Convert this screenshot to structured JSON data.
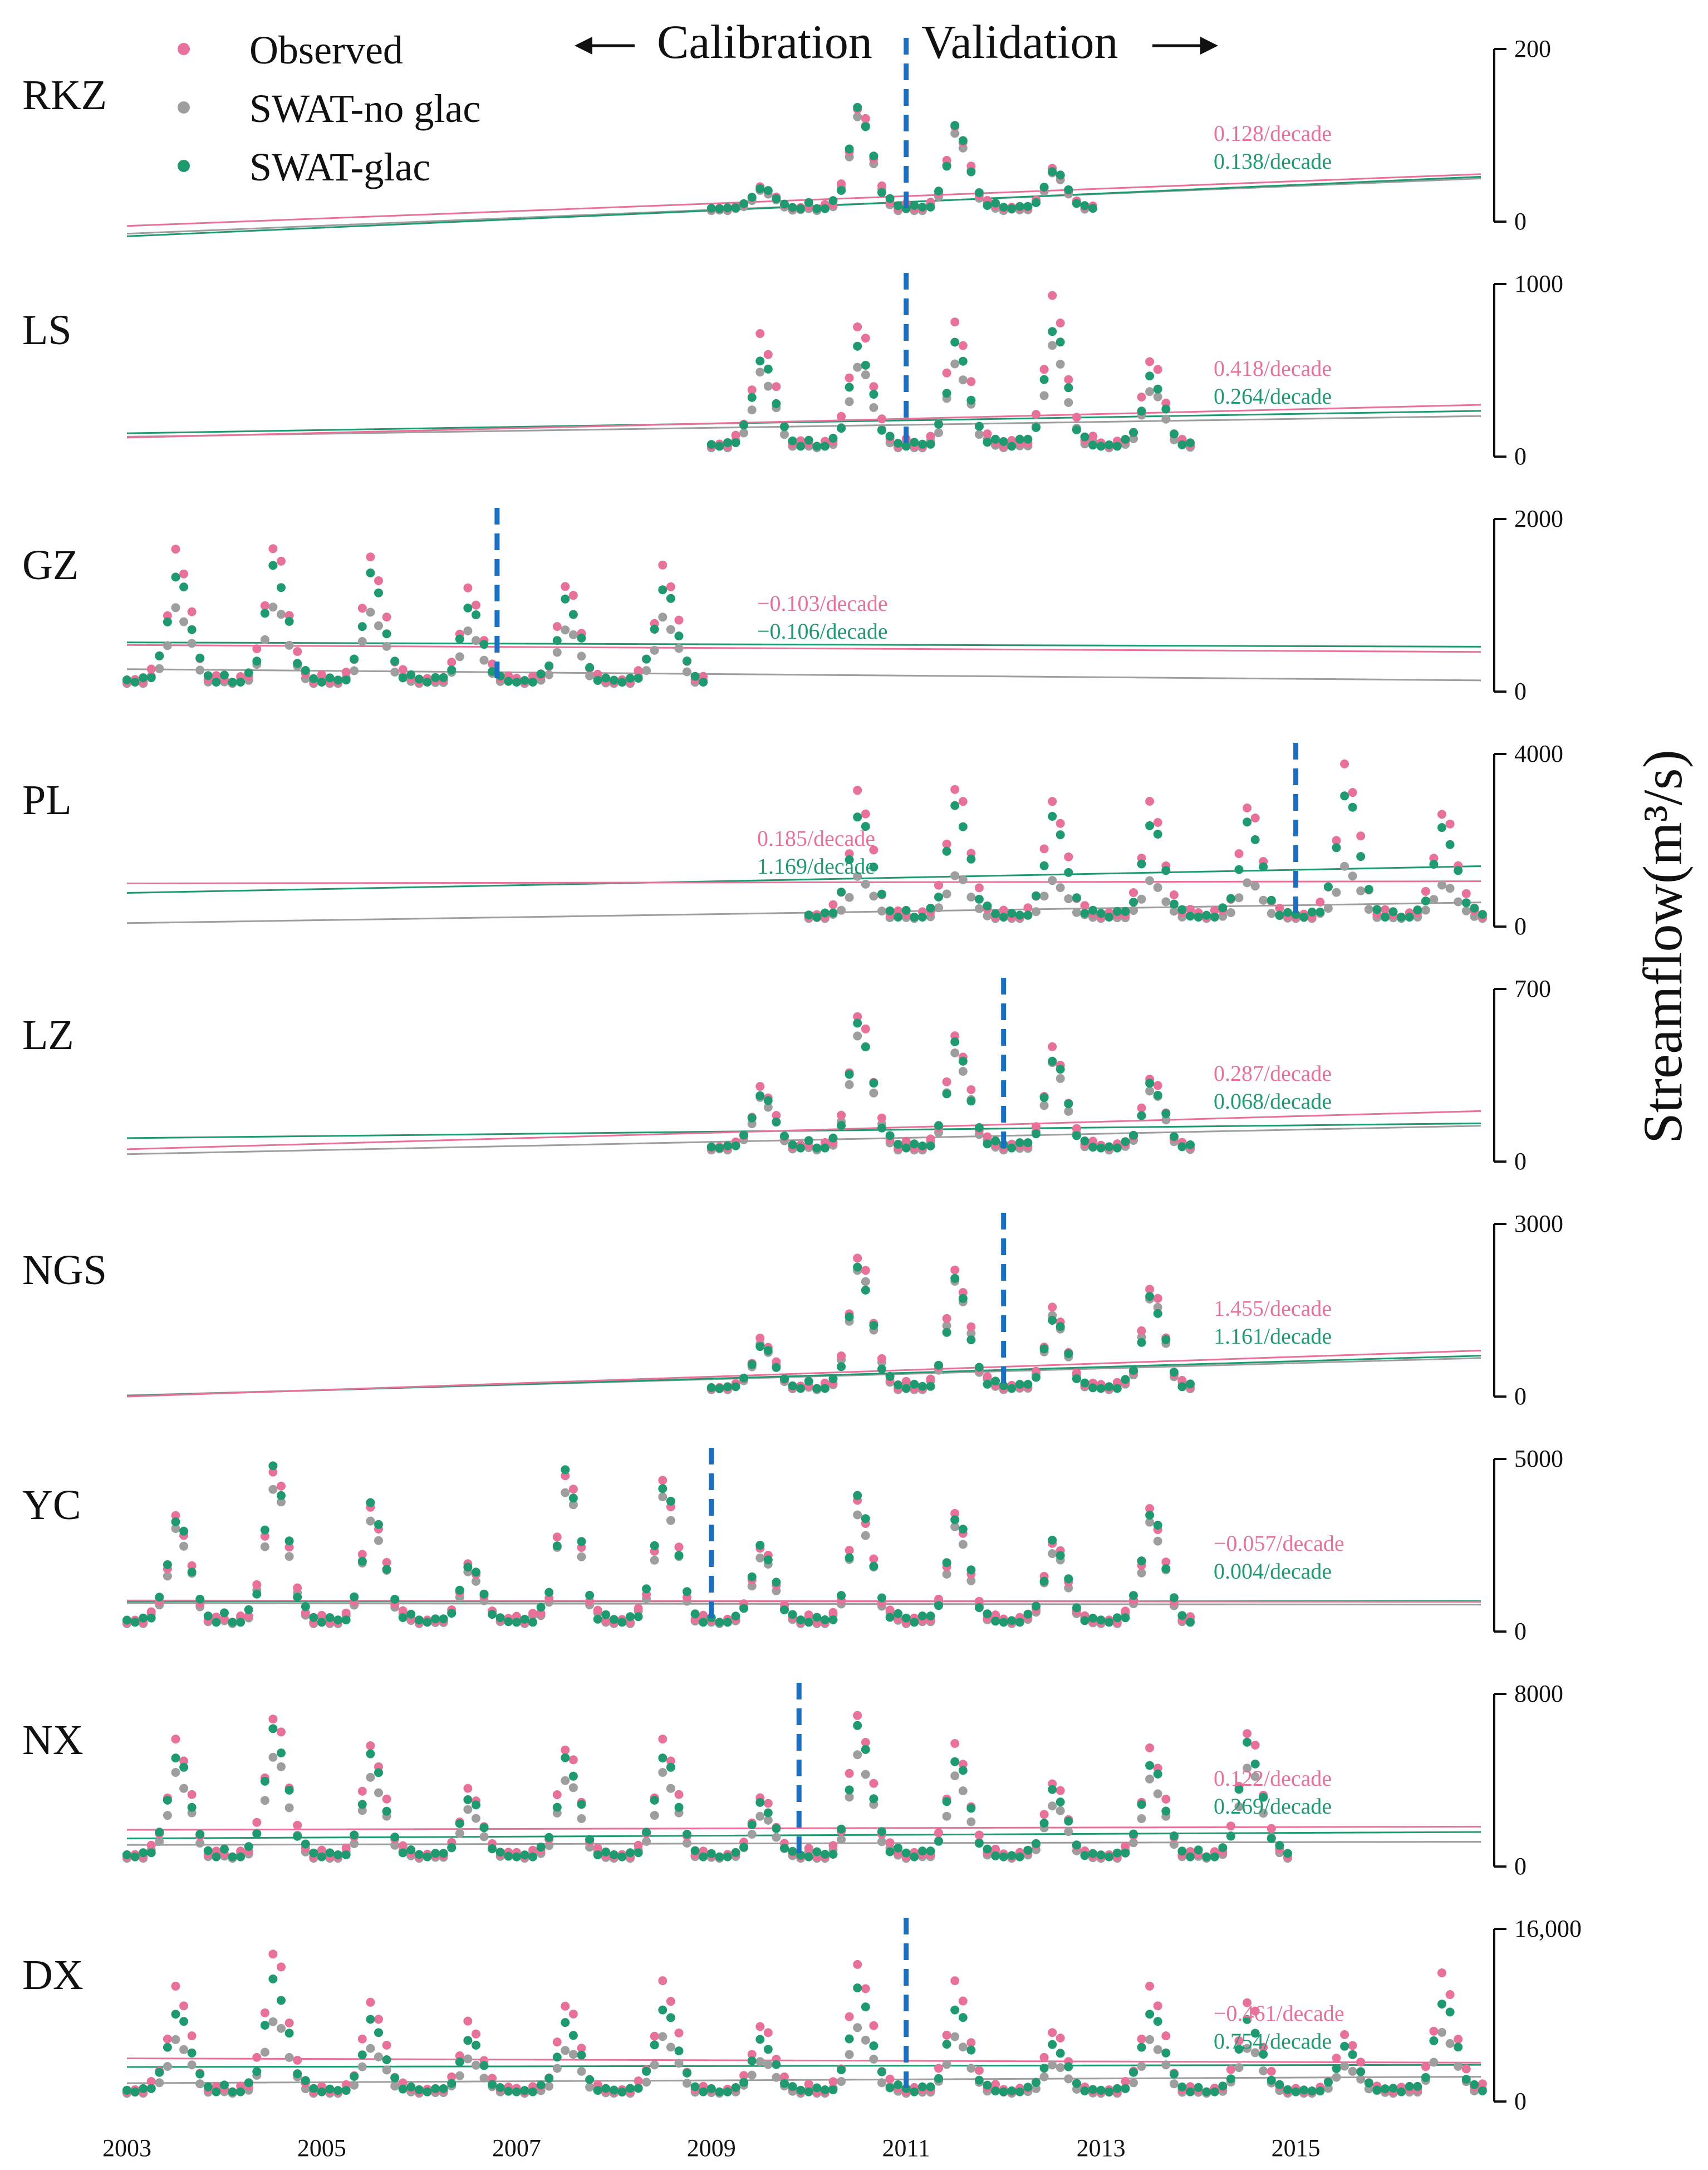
{
  "header": {
    "calibration": "Calibration",
    "validation": "Validation"
  },
  "legend": [
    {
      "label": "Observed",
      "color": "#e8719c"
    },
    {
      "label": "SWAT-no glac",
      "color": "#9e9e9e"
    },
    {
      "label": "SWAT-glac",
      "color": "#1f9a6f"
    }
  ],
  "colors": {
    "observed": "#e8719c",
    "noglac": "#9e9e9e",
    "glac": "#1f9a6f",
    "split": "#1a6fc0",
    "axis": "#111111"
  },
  "chart_data": {
    "type": "scatter",
    "ylabel_main": "Streamflow",
    "ylabel_sup": "(m³/s)",
    "x_ticks": [
      "2003",
      "2005",
      "2007",
      "2009",
      "2011",
      "2013",
      "2015"
    ],
    "x_range": [
      2003.0,
      2016.9
    ],
    "panels": [
      {
        "station": "RKZ",
        "ymax": 200,
        "tick_top": "200",
        "tick_bottom": "0",
        "start": 2009.0,
        "end": 2012.9,
        "split": 2011.0,
        "base": 15,
        "peaks": [
          40,
          135,
          110,
          60
        ],
        "factor": {
          "noglac": 0.95,
          "glac": 0.98
        },
        "trends": {
          "observed": {
            "label": "0.128/decade",
            "y0": -5,
            "y1": 55
          },
          "noglac": {
            "y0": -14,
            "y1": 50
          },
          "glac": {
            "y0": -17,
            "y1": 52
          }
        },
        "glac_label": "0.138/decade"
      },
      {
        "station": "LS",
        "ymax": 1000,
        "tick_top": "1000",
        "tick_bottom": "0",
        "start": 2009.0,
        "end": 2013.9,
        "split": 2011.0,
        "base": 60,
        "peaks": [
          700,
          780,
          780,
          900,
          560
        ],
        "factor": {
          "noglac": 0.7,
          "glac": 0.82
        },
        "trends": {
          "observed": {
            "label": "0.418/decade",
            "y0": 110,
            "y1": 300
          },
          "noglac": {
            "y0": 115,
            "y1": 235
          },
          "glac": {
            "y0": 135,
            "y1": 265
          }
        },
        "glac_label": "0.264/decade"
      },
      {
        "station": "GZ",
        "ymax": 2000,
        "tick_top": "2000",
        "tick_bottom": "0",
        "start": 2003.0,
        "end": 2008.9,
        "split": 2006.8,
        "base": 110,
        "peaks": [
          1620,
          1720,
          1560,
          1160,
          1240,
          1440
        ],
        "factor": {
          "noglac": 0.6,
          "glac": 0.85
        },
        "trends": {
          "observed": {
            "label": "−0.103/decade",
            "y0": 540,
            "y1": 460
          },
          "noglac": {
            "y0": 260,
            "y1": 130
          },
          "glac": {
            "y0": 570,
            "y1": 520
          }
        },
        "glac_label": "−0.106/decade"
      },
      {
        "station": "PL",
        "ymax": 4000,
        "tick_top": "4000",
        "tick_bottom": "0",
        "start": 2010.0,
        "end": 2016.9,
        "split": 2015.0,
        "base": 220,
        "peaks": [
          3100,
          3300,
          2900,
          2800,
          2800,
          3700,
          2700
        ],
        "factor": {
          "noglac": 0.38,
          "glac": 0.85
        },
        "trends": {
          "observed": {
            "label": "0.185/decade",
            "y0": 1000,
            "y1": 1050
          },
          "noglac": {
            "y0": 80,
            "y1": 560
          },
          "glac": {
            "y0": 780,
            "y1": 1400
          }
        },
        "glac_label": "1.169/decade"
      },
      {
        "station": "LZ",
        "ymax": 700,
        "tick_top": "700",
        "tick_bottom": "0",
        "start": 2009.0,
        "end": 2013.9,
        "split": 2012.0,
        "base": 55,
        "peaks": [
          300,
          610,
          510,
          450,
          340
        ],
        "factor": {
          "noglac": 0.88,
          "glac": 0.92
        },
        "trends": {
          "observed": {
            "label": "0.287/decade",
            "y0": 50,
            "y1": 205
          },
          "noglac": {
            "y0": 30,
            "y1": 145
          },
          "glac": {
            "y0": 95,
            "y1": 155
          }
        },
        "glac_label": "0.068/decade"
      },
      {
        "station": "NGS",
        "ymax": 3000,
        "tick_top": "3000",
        "tick_bottom": "0",
        "start": 2009.0,
        "end": 2013.9,
        "split": 2012.0,
        "base": 140,
        "peaks": [
          1000,
          2500,
          2200,
          1500,
          1900
        ],
        "factor": {
          "noglac": 0.92,
          "glac": 0.9
        },
        "trends": {
          "observed": {
            "label": "1.455/decade",
            "y0": 0,
            "y1": 800
          },
          "noglac": {
            "y0": 20,
            "y1": 670
          },
          "glac": {
            "y0": 10,
            "y1": 710
          }
        },
        "glac_label": "1.161/decade"
      },
      {
        "station": "YC",
        "ymax": 5000,
        "tick_top": "5000",
        "tick_bottom": "0",
        "start": 2003.0,
        "end": 2013.9,
        "split": 2009.0,
        "base": 270,
        "peaks": [
          3300,
          4800,
          3600,
          1900,
          4600,
          4300,
          2500,
          3800,
          3300,
          2600,
          3500
        ],
        "factor": {
          "noglac": 0.9,
          "glac": 1.0
        },
        "trends": {
          "observed": {
            "label": "−0.057/decade",
            "y0": 900,
            "y1": 860
          },
          "noglac": {
            "y0": 820,
            "y1": 780
          },
          "glac": {
            "y0": 870,
            "y1": 880
          }
        },
        "glac_label": "0.004/decade"
      },
      {
        "station": "NX",
        "ymax": 8000,
        "tick_top": "8000",
        "tick_bottom": "0",
        "start": 2003.0,
        "end": 2014.9,
        "split": 2009.9,
        "base": 450,
        "peaks": [
          5800,
          7100,
          5600,
          3500,
          5500,
          5800,
          3300,
          7000,
          5500,
          3900,
          5400,
          6400
        ],
        "factor": {
          "noglac": 0.75,
          "glac": 0.9
        },
        "trends": {
          "observed": {
            "label": "0.122/decade",
            "y0": 1700,
            "y1": 1850
          },
          "noglac": {
            "y0": 1000,
            "y1": 1150
          },
          "glac": {
            "y0": 1300,
            "y1": 1600
          }
        },
        "glac_label": "0.269/decade"
      },
      {
        "station": "DX",
        "ymax": 16000,
        "tick_top": "16,000",
        "tick_bottom": "0",
        "start": 2003.0,
        "end": 2016.9,
        "split": 2011.0,
        "base": 900,
        "peaks": [
          10500,
          14200,
          9200,
          7200,
          9000,
          11000,
          7200,
          12700,
          10800,
          6500,
          10500,
          9500,
          6200,
          11500
        ],
        "factor": {
          "noglac": 0.55,
          "glac": 0.8
        },
        "trends": {
          "observed": {
            "label": "−0.461/decade",
            "y0": 4000,
            "y1": 3600
          },
          "noglac": {
            "y0": 1700,
            "y1": 2300
          },
          "glac": {
            "y0": 3200,
            "y1": 3400
          }
        },
        "glac_label": "0.754/decade"
      }
    ]
  }
}
